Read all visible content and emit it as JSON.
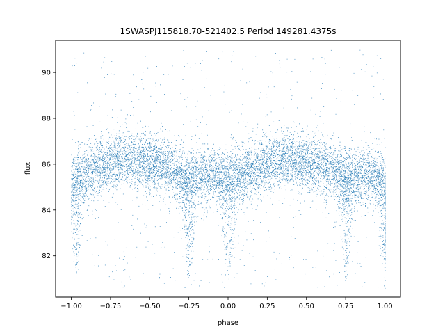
{
  "chart_data": {
    "type": "scatter",
    "title": "1SWASPJ115818.70-521402.5 Period 149281.4375s",
    "xlabel": "phase",
    "ylabel": "flux",
    "xlim": [
      -1.1,
      1.1
    ],
    "ylim": [
      80.2,
      91.4
    ],
    "xticks": [
      -1.0,
      -0.75,
      -0.5,
      -0.25,
      0.0,
      0.25,
      0.5,
      0.75,
      1.0
    ],
    "xtick_labels": [
      "−1.00",
      "−0.75",
      "−0.50",
      "−0.25",
      "0.00",
      "0.25",
      "0.50",
      "0.75",
      "1.00"
    ],
    "yticks": [
      82,
      84,
      86,
      88,
      90
    ],
    "ytick_labels": [
      "82",
      "84",
      "86",
      "88",
      "90"
    ],
    "grid": false,
    "marker_color": "#1f77b4",
    "series": [
      {
        "values_description_phase": [
          -1.0,
          -0.9,
          -0.8,
          -0.7,
          -0.6,
          -0.5,
          -0.4,
          -0.3,
          -0.25,
          -0.2,
          -0.1,
          0.0,
          0.1,
          0.2,
          0.3,
          0.4,
          0.5,
          0.6,
          0.7,
          0.75,
          0.8,
          0.9,
          1.0
        ],
        "mean_flux": [
          85.4,
          85.6,
          85.9,
          86.2,
          86.2,
          86.0,
          85.9,
          85.5,
          85.4,
          85.5,
          85.5,
          85.4,
          85.6,
          85.9,
          86.2,
          86.2,
          86.0,
          85.9,
          85.5,
          85.4,
          85.5,
          85.5,
          85.4
        ]
      }
    ],
    "dip_phases": [
      -0.97,
      -0.25,
      0.0,
      0.75,
      1.0
    ],
    "dip_min_flux": 81.0
  }
}
